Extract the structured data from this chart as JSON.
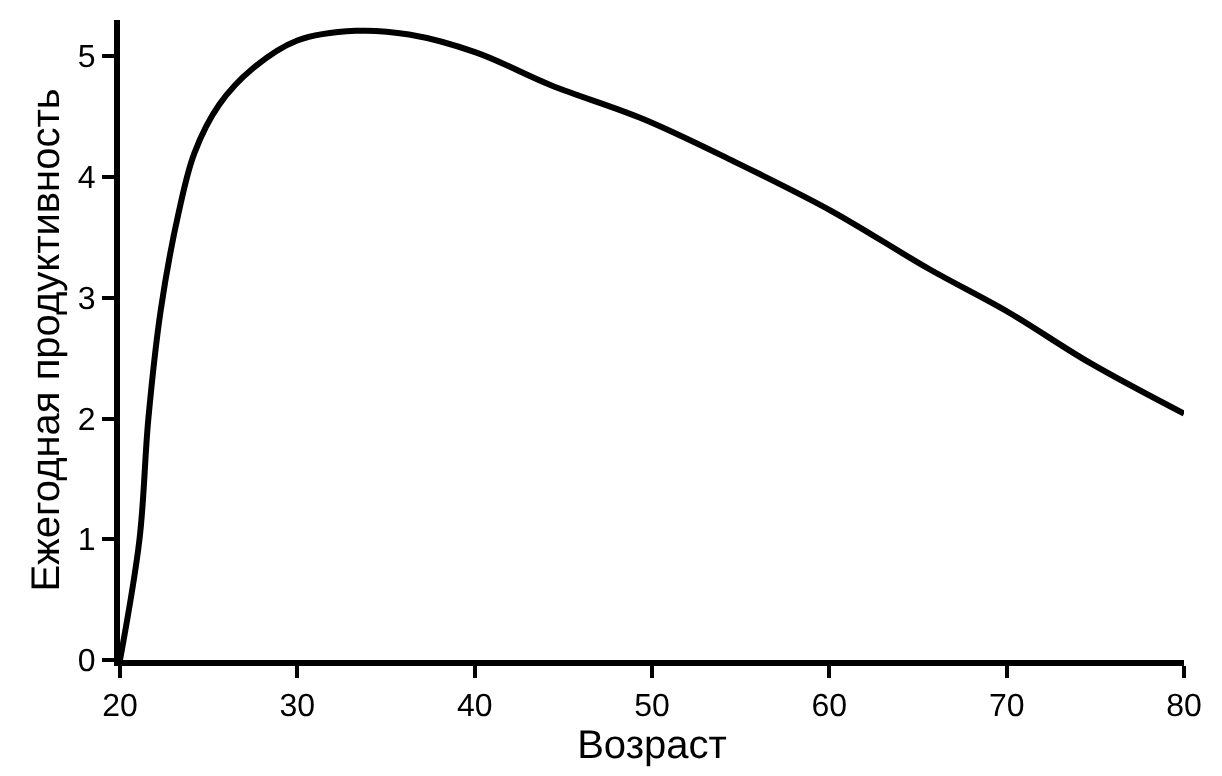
{
  "chart_data": {
    "type": "line",
    "xlabel": "Возраст",
    "ylabel": "Ежегодная продуктивность",
    "xlim": [
      20,
      80
    ],
    "xticks": [
      20,
      30,
      40,
      50,
      60,
      70,
      80
    ],
    "ylim": [
      0,
      5.3
    ],
    "yticks": [
      0,
      1,
      2,
      3,
      4,
      5
    ],
    "legend": false,
    "marker": "none",
    "line_style": "solid",
    "series": [
      {
        "color": "#000000",
        "x": [
          20,
          21.1,
          21.6,
          22.3,
          23.3,
          24.2,
          25.6,
          27.5,
          30,
          33.3,
          36.3,
          40.1,
          44.3,
          49.5,
          54.6,
          60.1,
          65.6,
          70.1,
          74.7,
          80
        ],
        "values": [
          0,
          1.0,
          2.0,
          2.9,
          3.7,
          4.2,
          4.6,
          4.9,
          5.13,
          5.21,
          5.18,
          5.03,
          4.76,
          4.48,
          4.13,
          3.72,
          3.24,
          2.88,
          2.46,
          2.04
        ]
      }
    ]
  }
}
